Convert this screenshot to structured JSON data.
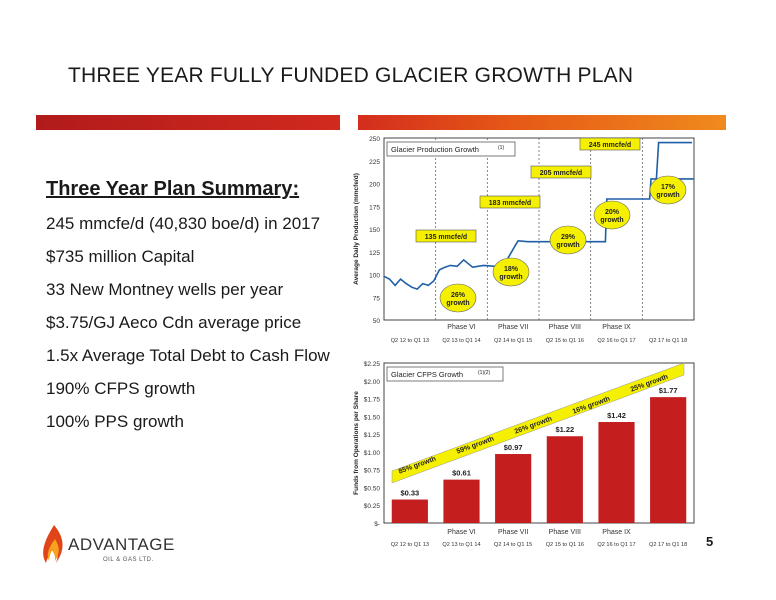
{
  "slide": {
    "title": "THREE YEAR FULLY FUNDED GLACIER GROWTH PLAN",
    "page_number": "5"
  },
  "summary": {
    "heading": "Three Year Plan Summary",
    "items": [
      "245 mmcfe/d (40,830 boe/d) in 2017",
      "$735 million Capital",
      "33 New Montney wells per year",
      "$3.75/GJ Aeco Cdn average price",
      "1.5x Average Total Debt to Cash Flow",
      "190% CFPS growth",
      "100% PPS growth"
    ]
  },
  "logo": {
    "name": "ADVANTAGE",
    "sub": "OIL & GAS LTD."
  },
  "colors": {
    "accent_red": "#c41e1e",
    "line_blue": "#1f5fa8",
    "bubble_yellow": "#f5f000"
  },
  "chart_data": [
    {
      "type": "line",
      "title": "Glacier Production Growth",
      "title_note": "(1)",
      "ylabel": "Average Daily Production (mmcfe/d)",
      "ylim": [
        50,
        250
      ],
      "yticks": [
        50,
        75,
        100,
        125,
        150,
        175,
        200,
        225,
        250
      ],
      "grid": false,
      "x": [
        0,
        0.25,
        0.5,
        0.75,
        1.0,
        1.25,
        1.5,
        1.75,
        2.0,
        2.25,
        2.5,
        2.75,
        3.0,
        3.3,
        3.6,
        4.0,
        4.5,
        5.0,
        5.5,
        6.0,
        6.06,
        6.5,
        7.0,
        7.5,
        8.0,
        8.06,
        8.5,
        9.0,
        9.5,
        10.0,
        10.06,
        10.5,
        11.0,
        11.5,
        12.0,
        12.06,
        12.5,
        13.0,
        13.5,
        14.0
      ],
      "values": [
        98,
        95,
        88,
        95,
        90,
        86,
        84,
        90,
        88,
        93,
        105,
        108,
        110,
        109,
        116,
        108,
        110,
        109,
        114,
        135,
        137,
        136,
        136,
        136,
        135,
        137,
        136,
        136,
        136,
        136,
        183,
        183,
        183,
        183,
        183,
        205,
        205,
        205,
        205,
        205
      ],
      "x_groups": [
        "Q2 12 to Q1 13",
        "Q2 13 to Q1 14",
        "Q2 14 to Q1 15",
        "Q2 15 to Q1 16",
        "Q2 16 to Q1 17",
        "Q2 17 to Q1 18"
      ],
      "phases": [
        "Phase VI",
        "Phase VII",
        "Phase VIII",
        "Phase IX"
      ],
      "level_labels": [
        "135 mmcfe/d",
        "183 mmcfe/d",
        "205 mmcfe/d",
        "245 mmcfe/d"
      ],
      "growth_labels": [
        "26% growth",
        "18% growth",
        "29% growth",
        "20% growth",
        "17% growth"
      ]
    },
    {
      "type": "bar",
      "title": "Glacier CFPS Growth",
      "title_note": "(1)(2)",
      "ylabel": "Funds from Operations per Share",
      "ylim": [
        0,
        2.25
      ],
      "yticks": [
        "$-",
        "$0.25",
        "$0.50",
        "$0.75",
        "$1.00",
        "$1.25",
        "$1.50",
        "$1.75",
        "$2.00",
        "$2.25"
      ],
      "categories": [
        "Q2 12 to Q1 13",
        "Q2 13 to Q1 14",
        "Q2 14 to Q1 15",
        "Q2 15 to Q1 16",
        "Q2 16 to Q1 17",
        "Q2 17 to Q1 18"
      ],
      "values": [
        0.33,
        0.61,
        0.97,
        1.22,
        1.42,
        1.77
      ],
      "data_labels": [
        "$0.33",
        "$0.61",
        "$0.97",
        "$1.22",
        "$1.42",
        "$1.77"
      ],
      "phases": [
        "Phase VI",
        "Phase VII",
        "Phase VIII",
        "Phase IX"
      ],
      "growth_labels": [
        "85% growth",
        "59% growth",
        "26% growth",
        "16% growth",
        "25% growth"
      ]
    }
  ]
}
